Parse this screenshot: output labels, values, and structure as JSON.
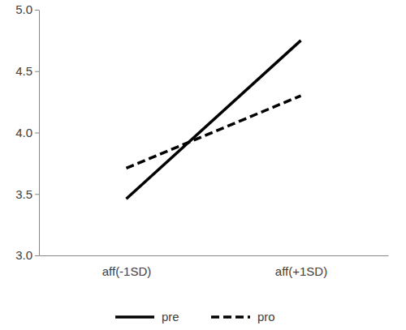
{
  "chart_data": {
    "type": "line",
    "categories": [
      "aff(-1SD)",
      "aff(+1SD)"
    ],
    "series": [
      {
        "name": "pre",
        "color": "#000000",
        "line_style": "solid",
        "marker": "none",
        "values": [
          3.46,
          4.75
        ]
      },
      {
        "name": "pro",
        "color": "#000000",
        "line_style": "dashed",
        "marker": "none",
        "values": [
          3.71,
          4.3
        ]
      }
    ],
    "ylim": [
      3.0,
      5.0
    ],
    "yticks": [
      {
        "value": 3.0,
        "label": "3.0"
      },
      3.5,
      {
        "value": 4.0,
        "label": "4.0"
      },
      4.5,
      {
        "value": 5.0,
        "label": "5.0"
      }
    ],
    "grid": false,
    "legend": "bottom"
  }
}
